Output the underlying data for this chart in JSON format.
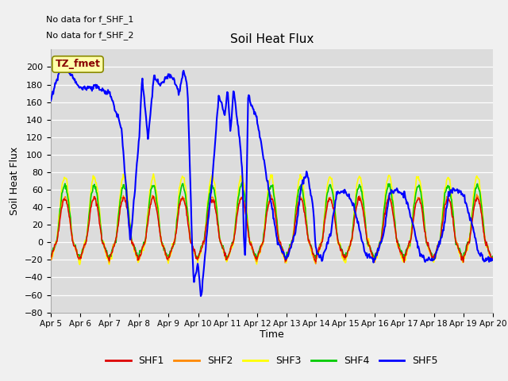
{
  "title": "Soil Heat Flux",
  "ylabel": "Soil Heat Flux",
  "xlabel": "Time",
  "note1": "No data for f_SHF_1",
  "note2": "No data for f_SHF_2",
  "annotation": "TZ_fmet",
  "ylim": [
    -80,
    220
  ],
  "yticks": [
    -80,
    -60,
    -40,
    -20,
    0,
    20,
    40,
    60,
    80,
    100,
    120,
    140,
    160,
    180,
    200
  ],
  "colors": {
    "SHF1": "#dd0000",
    "SHF2": "#ff8800",
    "SHF3": "#ffff00",
    "SHF4": "#00cc00",
    "SHF5": "#0000ff"
  },
  "bg_color": "#dcdcdc",
  "fig_bg": "#f0f0f0",
  "legend_colors": [
    "#dd0000",
    "#ff8800",
    "#ffff00",
    "#00cc00",
    "#0000ff"
  ],
  "legend_labels": [
    "SHF1",
    "SHF2",
    "SHF3",
    "SHF4",
    "SHF5"
  ],
  "shf5_keypoints": [
    [
      0.0,
      165
    ],
    [
      0.35,
      200
    ],
    [
      0.6,
      195
    ],
    [
      1.0,
      175
    ],
    [
      1.5,
      178
    ],
    [
      2.0,
      170
    ],
    [
      2.4,
      130
    ],
    [
      2.7,
      0
    ],
    [
      3.0,
      120
    ],
    [
      3.1,
      190
    ],
    [
      3.3,
      118
    ],
    [
      3.5,
      190
    ],
    [
      3.7,
      180
    ],
    [
      4.0,
      190
    ],
    [
      4.2,
      185
    ],
    [
      4.35,
      170
    ],
    [
      4.5,
      195
    ],
    [
      4.6,
      185
    ],
    [
      4.65,
      165
    ],
    [
      4.7,
      110
    ],
    [
      4.8,
      -5
    ],
    [
      4.85,
      -45
    ],
    [
      5.0,
      -25
    ],
    [
      5.1,
      -65
    ],
    [
      5.3,
      10
    ],
    [
      5.5,
      80
    ],
    [
      5.7,
      170
    ],
    [
      5.9,
      145
    ],
    [
      6.0,
      175
    ],
    [
      6.1,
      125
    ],
    [
      6.2,
      175
    ],
    [
      6.4,
      120
    ],
    [
      6.5,
      80
    ],
    [
      6.55,
      10
    ],
    [
      6.6,
      -20
    ],
    [
      6.7,
      170
    ],
    [
      6.8,
      157
    ],
    [
      7.0,
      140
    ],
    [
      7.3,
      80
    ],
    [
      7.5,
      40
    ],
    [
      7.7,
      0
    ],
    [
      8.0,
      -20
    ],
    [
      8.3,
      10
    ],
    [
      8.5,
      65
    ],
    [
      8.7,
      80
    ],
    [
      8.9,
      40
    ],
    [
      9.0,
      -10
    ],
    [
      9.2,
      -20
    ],
    [
      9.5,
      10
    ],
    [
      9.7,
      55
    ],
    [
      10.0,
      60
    ],
    [
      10.3,
      40
    ],
    [
      10.5,
      10
    ],
    [
      10.7,
      -15
    ],
    [
      11.0,
      -20
    ],
    [
      11.3,
      10
    ],
    [
      11.5,
      55
    ],
    [
      11.7,
      60
    ],
    [
      12.0,
      55
    ],
    [
      12.3,
      20
    ],
    [
      12.5,
      -10
    ],
    [
      12.7,
      -20
    ],
    [
      13.0,
      -20
    ],
    [
      13.3,
      10
    ],
    [
      13.5,
      55
    ],
    [
      13.7,
      60
    ],
    [
      14.0,
      55
    ],
    [
      14.3,
      20
    ],
    [
      14.5,
      -10
    ],
    [
      14.7,
      -20
    ],
    [
      15.0,
      -20
    ]
  ]
}
